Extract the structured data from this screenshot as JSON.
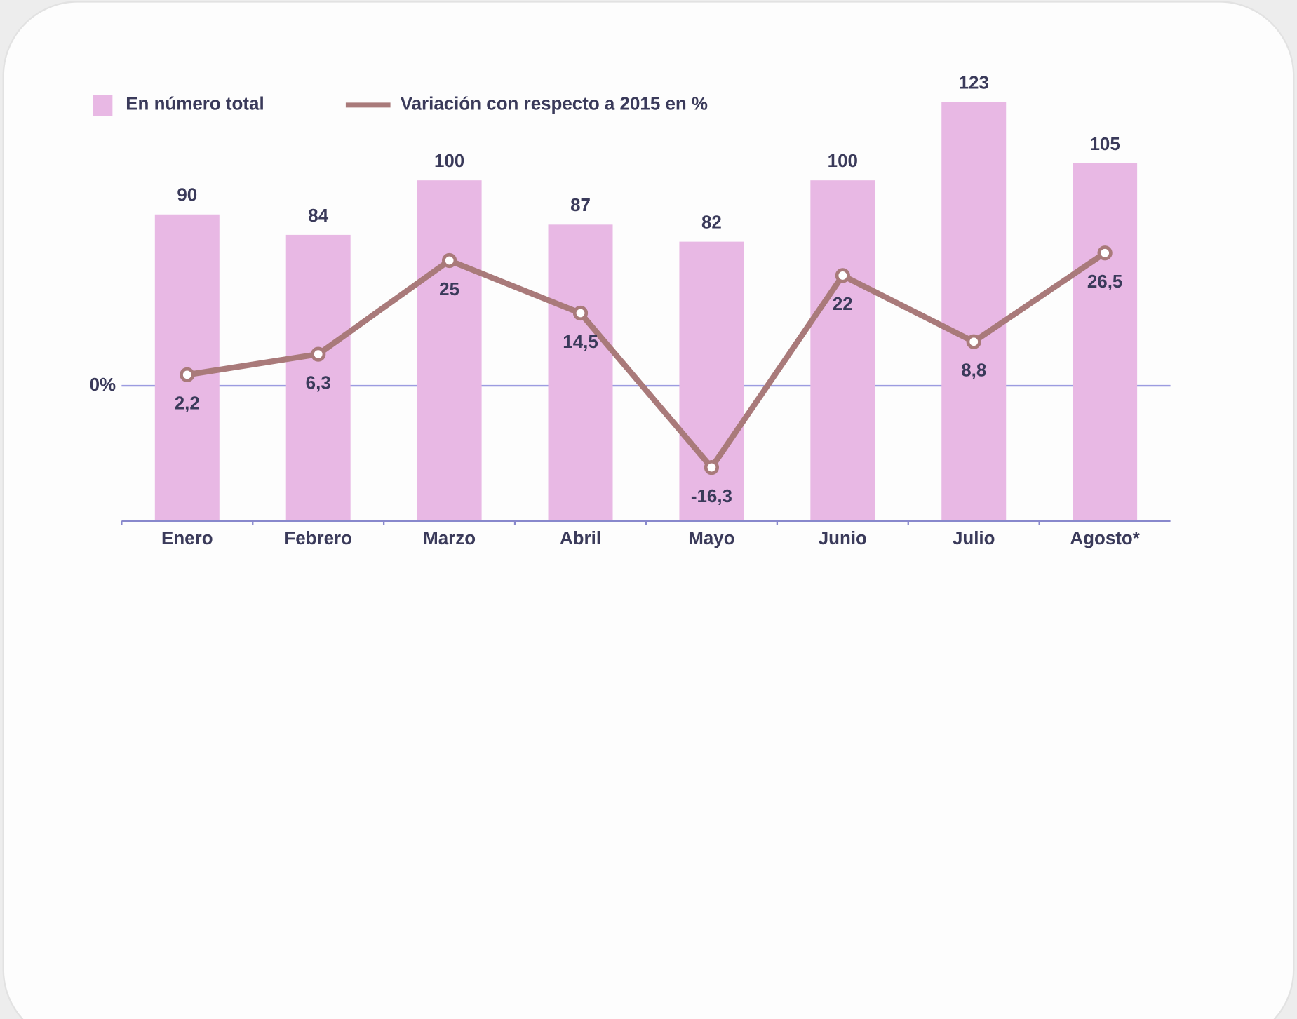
{
  "chart_data": {
    "type": "bar",
    "legend_position": "top-left",
    "categories": [
      "Enero",
      "Febrero",
      "Marzo",
      "Abril",
      "Mayo",
      "Junio",
      "Julio",
      "Agosto*"
    ],
    "ylim": [
      0,
      125
    ],
    "y2lim": [
      -27,
      58
    ],
    "y2ticks": [
      {
        "value": 0,
        "label": "0%"
      }
    ],
    "series": [
      {
        "name": "En número total",
        "type": "bar",
        "color": "#e8b8e4",
        "values": [
          90,
          84,
          100,
          87,
          82,
          100,
          123,
          105
        ]
      },
      {
        "name": "Variación con respecto a 2015 en %",
        "type": "line",
        "axis": "y2",
        "color": "#a97a7a",
        "values": [
          2.2,
          6.3,
          25,
          14.5,
          -16.3,
          22,
          8.8,
          26.5
        ],
        "value_labels": [
          "2,2",
          "6,3",
          "25",
          "14,5",
          "-16,3",
          "22",
          "8,8",
          "26,5"
        ]
      }
    ]
  }
}
